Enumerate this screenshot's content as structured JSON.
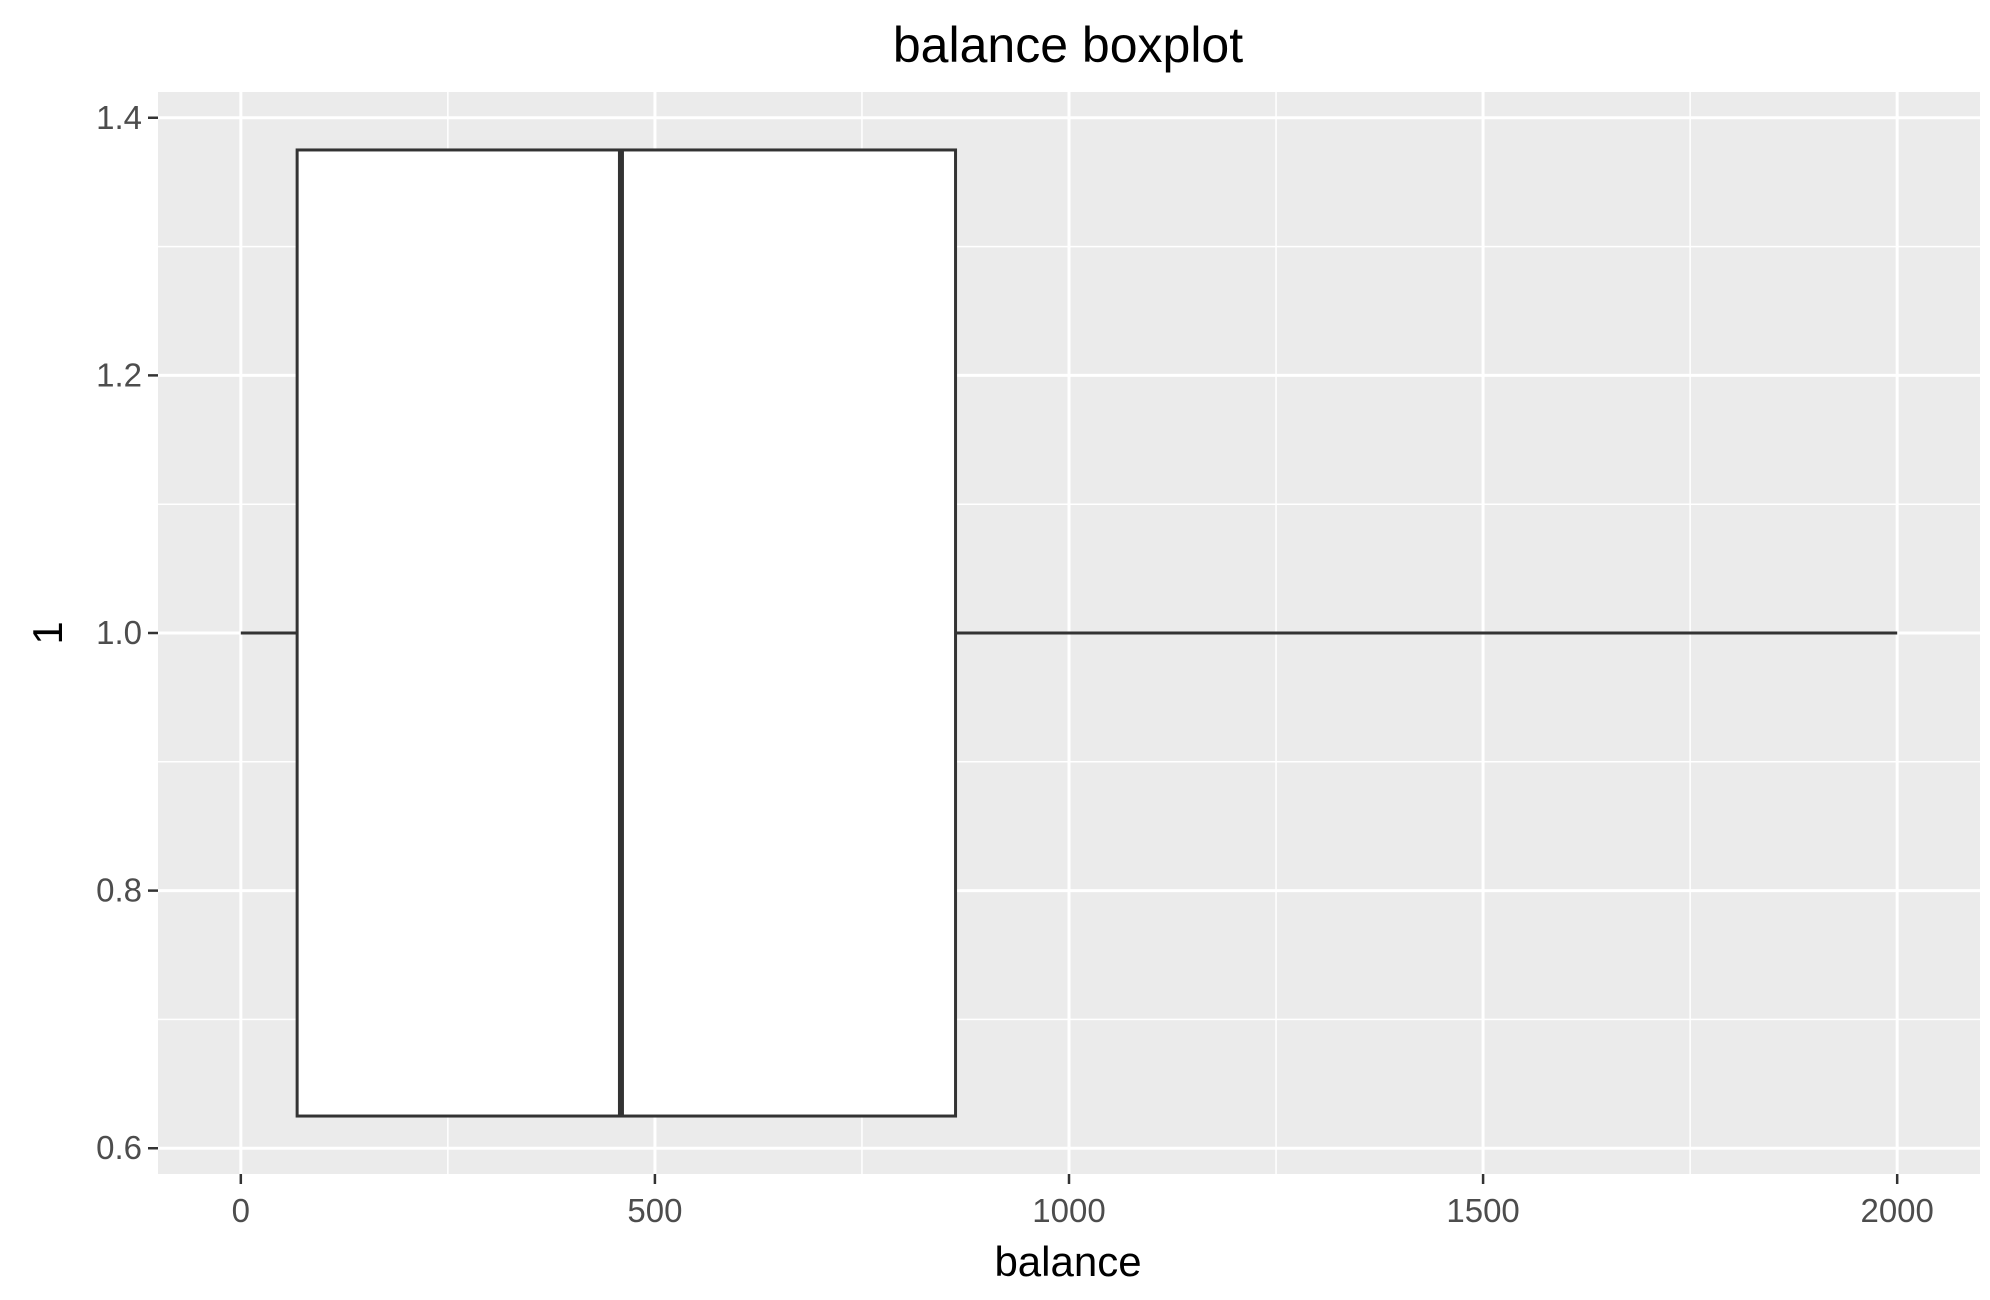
{
  "chart_data": {
    "type": "boxplot",
    "title": "balance boxplot",
    "xlabel": "balance",
    "ylabel": "1",
    "xlim": [
      -100,
      2100
    ],
    "ylim": [
      0.58,
      1.42
    ],
    "x_ticks": [
      0,
      500,
      1000,
      1500,
      2000
    ],
    "x_tick_labels": [
      "0",
      "500",
      "1000",
      "1500",
      "2000"
    ],
    "y_ticks": [
      0.6,
      0.8,
      1.0,
      1.2,
      1.4
    ],
    "y_tick_labels": [
      "0.6",
      "0.8",
      "1.0",
      "1.2",
      "1.4"
    ],
    "grid": true,
    "panel_color": "#ebebeb",
    "grid_color": "#ffffff",
    "box_fill": "#ffffff",
    "box_stroke": "#333333",
    "box": {
      "y": 1.0,
      "width": 0.75,
      "whisker_low": 0,
      "q1": 68,
      "median": 459,
      "q3": 863,
      "whisker_high": 2000
    }
  }
}
